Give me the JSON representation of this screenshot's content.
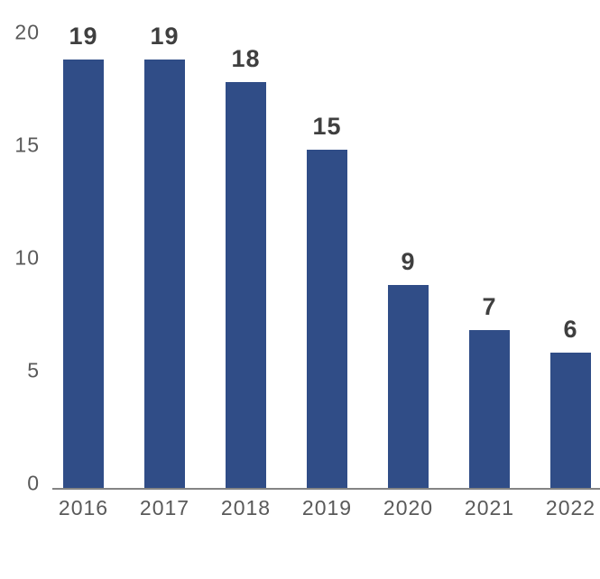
{
  "chart_data": {
    "type": "bar",
    "categories": [
      "2016",
      "2017",
      "2018",
      "2019",
      "2020",
      "2021",
      "2022"
    ],
    "values": [
      19,
      19,
      18,
      15,
      9,
      7,
      6
    ],
    "bar_value_labels": [
      "19",
      "19",
      "18",
      "15",
      "9",
      "7",
      "6"
    ],
    "ylim": [
      0,
      20
    ],
    "yticks": [
      0,
      5,
      10,
      15,
      20
    ],
    "grid": false,
    "legend_position": "none",
    "colors": {
      "bar": "#304D87",
      "value_label": "#3F3F3F",
      "tick_label": "#595959",
      "axis_line": "#848484",
      "background": "#FFFFFF"
    }
  }
}
